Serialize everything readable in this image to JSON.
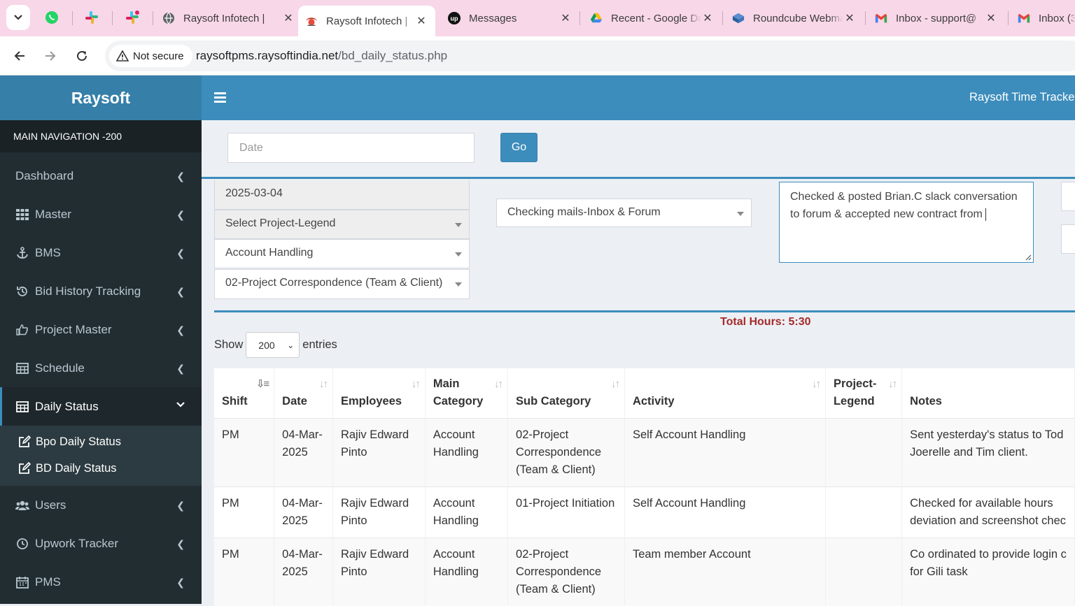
{
  "browser": {
    "tabs": [
      {
        "title": "Raysoft Infotech | ",
        "active": false,
        "icon": "globe-icon"
      },
      {
        "title": "Raysoft Infotech | ",
        "active": true,
        "icon": "raysoft-icon"
      },
      {
        "title": "Messages",
        "active": false,
        "icon": "upwork-icon"
      },
      {
        "title": "Recent - Google Dri",
        "active": false,
        "icon": "drive-icon"
      },
      {
        "title": "Roundcube Webmail",
        "active": false,
        "icon": "roundcube-icon"
      },
      {
        "title": "Inbox - support@",
        "active": false,
        "icon": "gmail-icon"
      },
      {
        "title": "Inbox (3",
        "active": false,
        "icon": "gmail-icon"
      }
    ],
    "security_label": "Not secure",
    "url_host": "raysoftpms.raysoftindia.net",
    "url_path": "/bd_daily_status.php"
  },
  "sidebar": {
    "brand": "Raysoft",
    "header": "MAIN NAVIGATION -200",
    "items": [
      {
        "label": "Dashboard",
        "icon": "dashboard-icon"
      },
      {
        "label": "Master",
        "icon": "grid-icon"
      },
      {
        "label": "BMS",
        "icon": "anchor-icon"
      },
      {
        "label": "Bid History Tracking",
        "icon": "history-icon"
      },
      {
        "label": "Project Master",
        "icon": "thumbs-up-icon"
      },
      {
        "label": "Schedule",
        "icon": "table-icon"
      },
      {
        "label": "Daily Status",
        "icon": "table-icon"
      },
      {
        "label": "Users",
        "icon": "users-icon"
      },
      {
        "label": "Upwork Tracker",
        "icon": "clock-icon"
      },
      {
        "label": "PMS",
        "icon": "calendar-icon"
      }
    ],
    "subitems": [
      {
        "label": "Bpo Daily Status",
        "icon": "edit-icon"
      },
      {
        "label": "BD Daily Status",
        "icon": "edit-icon"
      }
    ]
  },
  "topbar": {
    "title": "Raysoft Time Tracker"
  },
  "filter": {
    "date_placeholder": "Date",
    "go_label": "Go"
  },
  "form": {
    "date_value": "2025-03-04",
    "project_legend": "Select Project-Legend",
    "main_category": "Account Handling",
    "sub_category": "02-Project Correspondence (Team & Client)",
    "activity": "Checking mails-Inbox & Forum",
    "notes_text": "Checked & posted Brian.C slack conversation to forum & accepted new contract from "
  },
  "table": {
    "total_hours": "Total Hours: 5:30",
    "show_label": "Show",
    "entries_value": "200",
    "entries_label": "entries",
    "headers": [
      "Shift",
      "Date",
      "Employees",
      "Main Category",
      "Sub Category",
      "Activity",
      "Project-Legend",
      "Notes"
    ],
    "rows": [
      {
        "shift": "PM",
        "date": "04-Mar-2025",
        "employee": "Rajiv Edward Pinto",
        "main_category": "Account Handling",
        "sub_category": "02-Project Correspondence (Team & Client)",
        "activity": "Self Account Handling",
        "legend": "",
        "notes_line1": "Sent yesterday's status to Tod",
        "notes_line2": "Joerelle and Tim client."
      },
      {
        "shift": "PM",
        "date": "04-Mar-2025",
        "employee": "Rajiv Edward Pinto",
        "main_category": "Account Handling",
        "sub_category": "01-Project Initiation",
        "activity": "Self Account Handling",
        "legend": "",
        "notes_line1": "Checked for available hours",
        "notes_line2": "deviation and screenshot chec"
      },
      {
        "shift": "PM",
        "date": "04-Mar-2025",
        "employee": "Rajiv Edward Pinto",
        "main_category": "Account Handling",
        "sub_category": "02-Project Correspondence (Team & Client)",
        "activity": "Team member Account",
        "legend": "",
        "notes_line1": "Co ordinated to provide login c",
        "notes_line2": "for Gili task"
      }
    ]
  },
  "colors": {
    "tabbar": "#f8d7e8",
    "brand_blue": "#3c8dbc",
    "sidebar_dark": "#222d32",
    "total_hours": "#a52a2a"
  }
}
